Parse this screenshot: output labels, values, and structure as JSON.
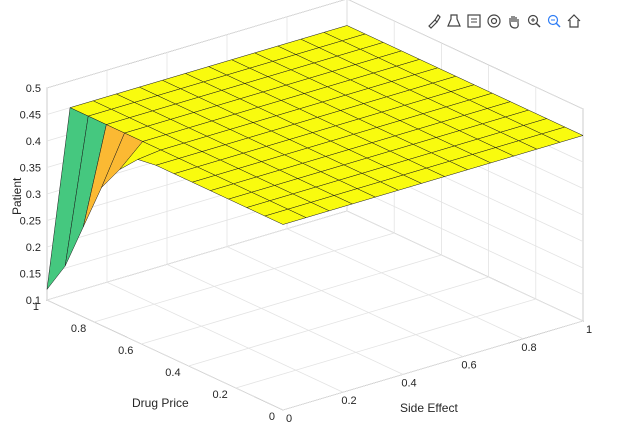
{
  "toolbar": {
    "buttons": [
      {
        "name": "brush-icon"
      },
      {
        "name": "export-icon"
      },
      {
        "name": "datatip-icon"
      },
      {
        "name": "rotate-3d-icon"
      },
      {
        "name": "pan-hand-icon"
      },
      {
        "name": "zoom-in-icon"
      },
      {
        "name": "zoom-out-icon"
      },
      {
        "name": "home-icon"
      }
    ]
  },
  "chart_data": {
    "type": "surface",
    "title": "",
    "xlabel": "Side Effect",
    "ylabel": "Drug Price",
    "zlabel": "Patient",
    "xlim": [
      0,
      1
    ],
    "ylim": [
      0,
      1
    ],
    "zlim": [
      0.1,
      0.5
    ],
    "xticks": [
      "0",
      "0.2",
      "0.4",
      "0.6",
      "0.8",
      "1"
    ],
    "yticks": [
      "0",
      "0.2",
      "0.4",
      "0.6",
      "0.8",
      "1"
    ],
    "zticks": [
      "0.1",
      "0.15",
      "0.2",
      "0.25",
      "0.3",
      "0.35",
      "0.4",
      "0.45",
      "0.5"
    ],
    "grid": true,
    "colormap": [
      "#3e26a8",
      "#2f7df5",
      "#2dbd8e",
      "#45c87f",
      "#fbb933",
      "#f9fb0e"
    ],
    "x": [
      0,
      0.0769,
      0.1538,
      0.2308,
      0.3077,
      0.3846,
      0.4615,
      0.5385,
      0.6154,
      0.6923,
      0.7692,
      0.8462,
      0.9231,
      1
    ],
    "y": [
      1,
      0.9231,
      0.8462,
      0.7692,
      0.6923,
      0.6154,
      0.5385,
      0.4615,
      0.3846,
      0.3077,
      0.2308,
      0.1538,
      0.0769,
      0
    ],
    "z_first_column_along_price": [
      0.12,
      0.18,
      0.27,
      0.36,
      0.41,
      0.445,
      0.45,
      0.45,
      0.45,
      0.45,
      0.45,
      0.45,
      0.45,
      0.45
    ],
    "z_plateau": 0.45
  }
}
